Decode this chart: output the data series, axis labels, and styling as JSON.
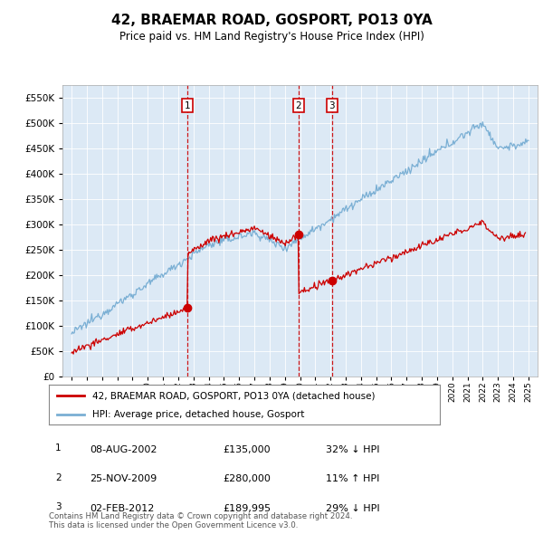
{
  "title": "42, BRAEMAR ROAD, GOSPORT, PO13 0YA",
  "subtitle": "Price paid vs. HM Land Registry's House Price Index (HPI)",
  "footer": "Contains HM Land Registry data © Crown copyright and database right 2024.\nThis data is licensed under the Open Government Licence v3.0.",
  "legend_red": "42, BRAEMAR ROAD, GOSPORT, PO13 0YA (detached house)",
  "legend_blue": "HPI: Average price, detached house, Gosport",
  "transactions": [
    {
      "num": 1,
      "date": "08-AUG-2002",
      "price": 135000,
      "pct": "32%",
      "dir": "↓",
      "year": 2002.6
    },
    {
      "num": 2,
      "date": "25-NOV-2009",
      "price": 280000,
      "pct": "11%",
      "dir": "↑",
      "year": 2009.9
    },
    {
      "num": 3,
      "date": "02-FEB-2012",
      "price": 189995,
      "pct": "29%",
      "dir": "↓",
      "year": 2012.1
    }
  ],
  "ylim": [
    0,
    575000
  ],
  "yticks": [
    0,
    50000,
    100000,
    150000,
    200000,
    250000,
    300000,
    350000,
    400000,
    450000,
    500000,
    550000
  ],
  "plot_bg": "#dce9f5",
  "red_color": "#cc0000",
  "blue_color": "#7aafd4",
  "vline_color": "#cc0000",
  "box_color": "#cc0000",
  "grid_color": "#ffffff"
}
